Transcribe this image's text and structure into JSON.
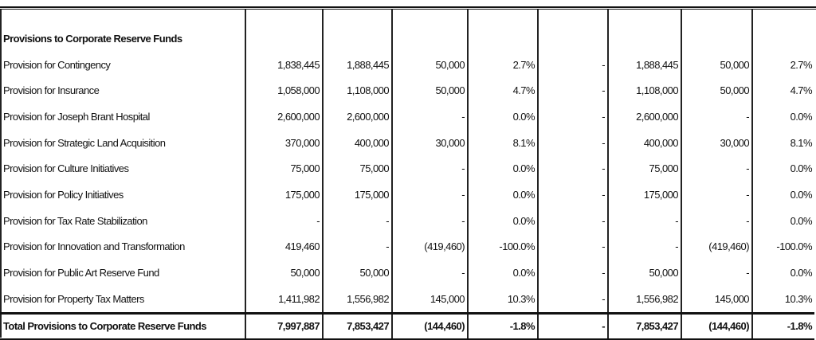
{
  "section_title": "Provisions to Corporate Reserve Funds",
  "rows": [
    {
      "label": "Provision for Contingency",
      "c1": "1,838,445",
      "c2": "1,888,445",
      "c3": "50,000",
      "c4": "2.7%",
      "c5": "-",
      "c6": "1,888,445",
      "c7": "50,000",
      "c8": "2.7%"
    },
    {
      "label": "Provision for Insurance",
      "c1": "1,058,000",
      "c2": "1,108,000",
      "c3": "50,000",
      "c4": "4.7%",
      "c5": "-",
      "c6": "1,108,000",
      "c7": "50,000",
      "c8": "4.7%"
    },
    {
      "label": "Provision for Joseph Brant Hospital",
      "c1": "2,600,000",
      "c2": "2,600,000",
      "c3": "-",
      "c4": "0.0%",
      "c5": "-",
      "c6": "2,600,000",
      "c7": "-",
      "c8": "0.0%"
    },
    {
      "label": "Provision for Strategic Land Acquisition",
      "c1": "370,000",
      "c2": "400,000",
      "c3": "30,000",
      "c4": "8.1%",
      "c5": "-",
      "c6": "400,000",
      "c7": "30,000",
      "c8": "8.1%"
    },
    {
      "label": "Provision for Culture Initiatives",
      "c1": "75,000",
      "c2": "75,000",
      "c3": "-",
      "c4": "0.0%",
      "c5": "-",
      "c6": "75,000",
      "c7": "-",
      "c8": "0.0%"
    },
    {
      "label": "Provision for Policy Initiatives",
      "c1": "175,000",
      "c2": "175,000",
      "c3": "-",
      "c4": "0.0%",
      "c5": "-",
      "c6": "175,000",
      "c7": "-",
      "c8": "0.0%"
    },
    {
      "label": "Provision for Tax Rate Stabilization",
      "c1": "-",
      "c2": "-",
      "c3": "-",
      "c4": "0.0%",
      "c5": "-",
      "c6": "-",
      "c7": "-",
      "c8": "0.0%"
    },
    {
      "label": "Provision for Innovation and Transformation",
      "c1": "419,460",
      "c2": "-",
      "c3": "(419,460)",
      "c4": "-100.0%",
      "c5": "-",
      "c6": "-",
      "c7": "(419,460)",
      "c8": "-100.0%"
    },
    {
      "label": "Provision for Public Art Reserve Fund",
      "c1": "50,000",
      "c2": "50,000",
      "c3": "-",
      "c4": "0.0%",
      "c5": "-",
      "c6": "50,000",
      "c7": "-",
      "c8": "0.0%"
    },
    {
      "label": "Provision for Property Tax Matters",
      "c1": "1,411,982",
      "c2": "1,556,982",
      "c3": "145,000",
      "c4": "10.3%",
      "c5": "-",
      "c6": "1,556,982",
      "c7": "145,000",
      "c8": "10.3%"
    }
  ],
  "total": {
    "label": "Total Provisions to Corporate Reserve Funds",
    "c1": "7,997,887",
    "c2": "7,853,427",
    "c3": "(144,460)",
    "c4": "-1.8%",
    "c5": "-",
    "c6": "7,853,427",
    "c7": "(144,460)",
    "c8": "-1.8%"
  }
}
